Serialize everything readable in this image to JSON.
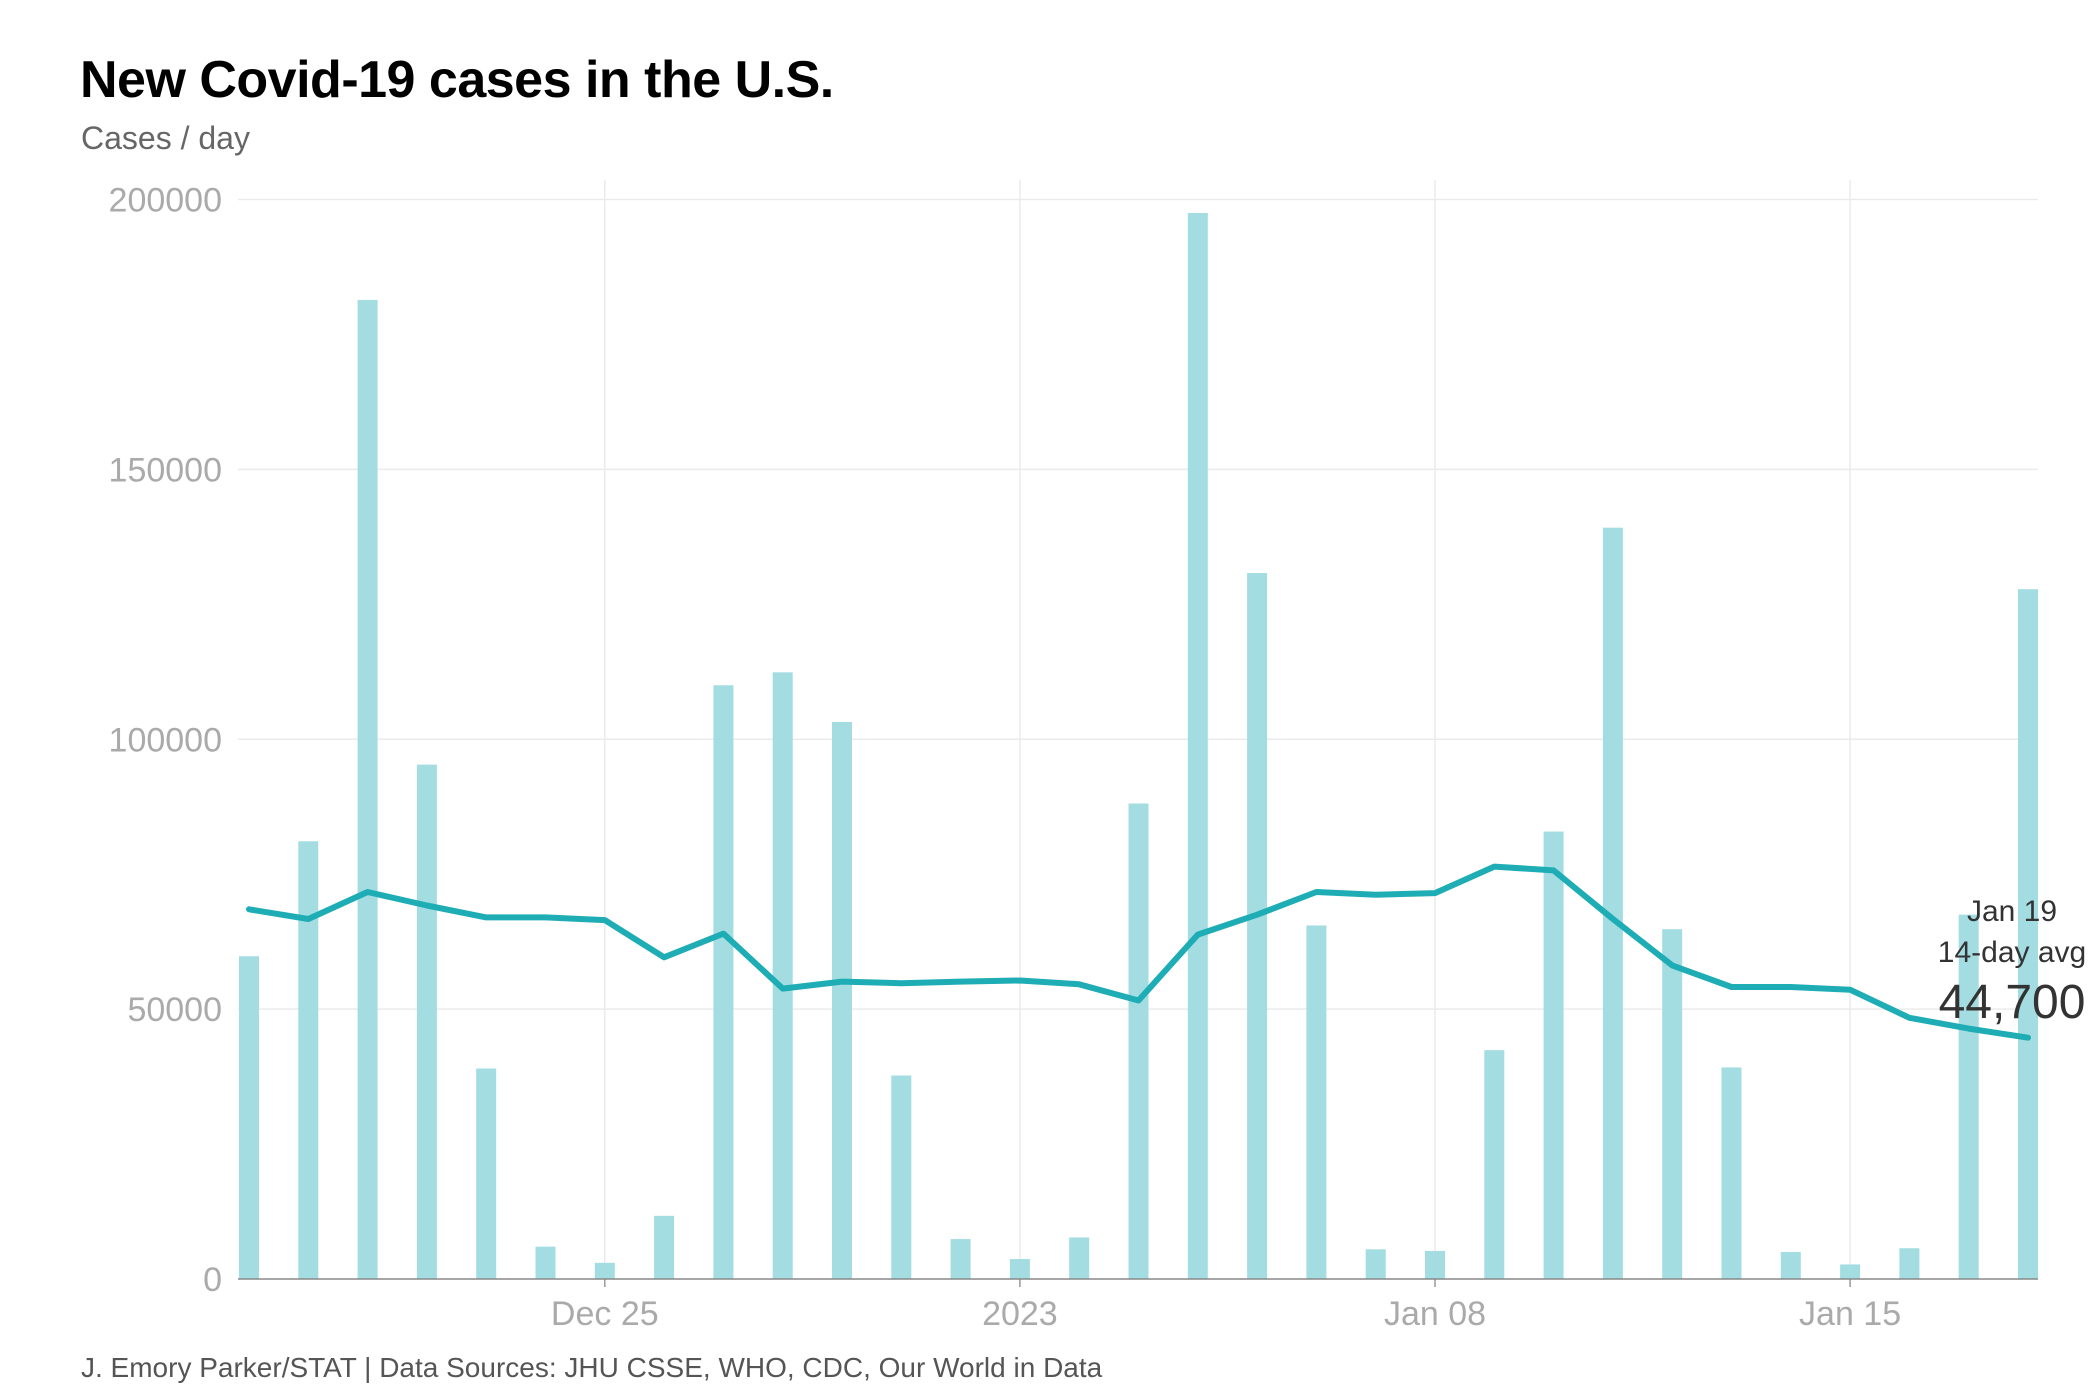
{
  "title": "New Covid-19 cases in the U.S.",
  "subtitle": "Cases / day",
  "source": "J. Emory Parker/STAT | Data Sources: JHU CSSE, WHO, CDC, Our World in Data",
  "chart_data": {
    "type": "bar+line",
    "title": "New Covid-19 cases in the U.S.",
    "ylabel": "Cases / day",
    "ylim": [
      0,
      200000
    ],
    "yticks": [
      "0",
      "50000",
      "100000",
      "150000",
      "200000"
    ],
    "xticks": [
      {
        "label": "Dec 25",
        "date": "2022-12-25"
      },
      {
        "label": "2023",
        "date": "2023-01-01"
      },
      {
        "label": "Jan 08",
        "date": "2023-01-08"
      },
      {
        "label": "Jan 15",
        "date": "2023-01-15"
      }
    ],
    "grid": true,
    "colors": {
      "bars": "#a3dde2",
      "line": "#1fadb5"
    },
    "x": [
      "2022-12-19",
      "2022-12-20",
      "2022-12-21",
      "2022-12-22",
      "2022-12-23",
      "2022-12-24",
      "2022-12-25",
      "2022-12-26",
      "2022-12-27",
      "2022-12-28",
      "2022-12-29",
      "2022-12-30",
      "2022-12-31",
      "2023-01-01",
      "2023-01-02",
      "2023-01-03",
      "2023-01-04",
      "2023-01-05",
      "2023-01-06",
      "2023-01-07",
      "2023-01-08",
      "2023-01-09",
      "2023-01-10",
      "2023-01-11",
      "2023-01-12",
      "2023-01-13",
      "2023-01-14",
      "2023-01-15",
      "2023-01-16",
      "2023-01-17",
      "2023-01-18"
    ],
    "series": [
      {
        "type": "bar",
        "values": [
          59800,
          81100,
          181400,
          95300,
          39000,
          6000,
          3000,
          11700,
          110000,
          112400,
          103200,
          37700,
          7400,
          3700,
          7700,
          88100,
          197500,
          130800,
          65500,
          5500,
          5200,
          42400,
          82900,
          139200,
          64800,
          39200,
          5000,
          2700,
          5700,
          67500,
          127800
        ]
      },
      {
        "type": "line",
        "values": [
          68500,
          66700,
          71700,
          69200,
          67000,
          67000,
          66500,
          59600,
          64000,
          53800,
          55100,
          54800,
          55100,
          55300,
          54600,
          51600,
          63800,
          67500,
          71700,
          71200,
          71500,
          76400,
          75700,
          66700,
          58100,
          54100,
          54100,
          53600,
          48400,
          46400,
          44700
        ]
      }
    ],
    "annotation": {
      "date_label": "Jan 19",
      "label": "14-day avg",
      "value": "44,700"
    }
  }
}
